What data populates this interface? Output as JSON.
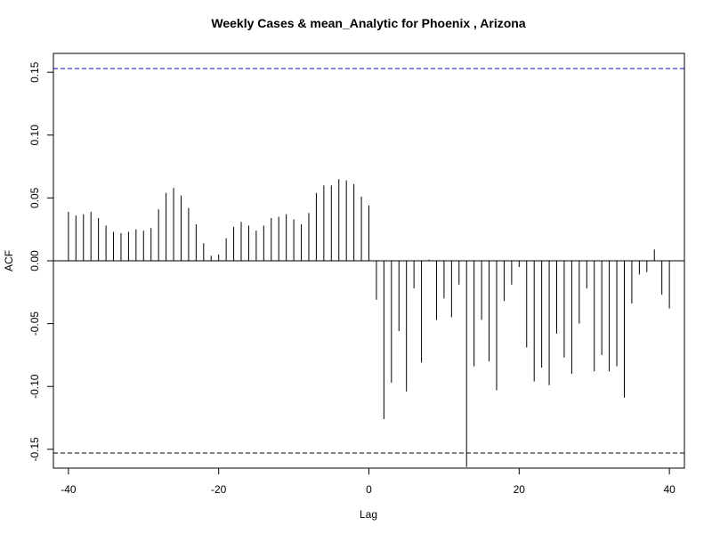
{
  "chart_data": {
    "type": "bar",
    "title": "Weekly Cases & mean_Analytic for Phoenix , Arizona",
    "xlabel": "Lag",
    "ylabel": "ACF",
    "xlim": [
      -42,
      42
    ],
    "ylim": [
      -0.165,
      0.165
    ],
    "x_ticks": [
      -40,
      -20,
      0,
      20,
      40
    ],
    "x_tick_labels": [
      "-40",
      "-20",
      "0",
      "20",
      "40"
    ],
    "y_ticks": [
      -0.15,
      -0.1,
      -0.05,
      0.0,
      0.05,
      0.1,
      0.15
    ],
    "y_tick_labels": [
      "-0.15",
      "-0.10",
      "-0.05",
      "0.00",
      "0.05",
      "0.10",
      "0.15"
    ],
    "confidence_bounds": [
      0.153,
      -0.153
    ],
    "grid": false,
    "colors": {
      "bars": "#000000",
      "upper_bound": "#0000cc",
      "lower_bound": "#000000",
      "zero_line": "#000000"
    },
    "lags": [
      -40,
      -39,
      -38,
      -37,
      -36,
      -35,
      -34,
      -33,
      -32,
      -31,
      -30,
      -29,
      -28,
      -27,
      -26,
      -25,
      -24,
      -23,
      -22,
      -21,
      -20,
      -19,
      -18,
      -17,
      -16,
      -15,
      -14,
      -13,
      -12,
      -11,
      -10,
      -9,
      -8,
      -7,
      -6,
      -5,
      -4,
      -3,
      -2,
      -1,
      0,
      1,
      2,
      3,
      4,
      5,
      6,
      7,
      8,
      9,
      10,
      11,
      12,
      13,
      14,
      15,
      16,
      17,
      18,
      19,
      20,
      21,
      22,
      23,
      24,
      25,
      26,
      27,
      28,
      29,
      30,
      31,
      32,
      33,
      34,
      35,
      36,
      37,
      38,
      39,
      40
    ],
    "values": [
      0.039,
      0.036,
      0.037,
      0.039,
      0.034,
      0.028,
      0.023,
      0.022,
      0.023,
      0.025,
      0.024,
      0.026,
      0.041,
      0.054,
      0.058,
      0.052,
      0.042,
      0.029,
      0.014,
      0.004,
      0.005,
      0.018,
      0.027,
      0.031,
      0.028,
      0.024,
      0.028,
      0.034,
      0.035,
      0.037,
      0.033,
      0.029,
      0.038,
      0.054,
      0.06,
      0.06,
      0.065,
      0.064,
      0.061,
      0.051,
      0.044,
      -0.031,
      -0.126,
      -0.097,
      -0.056,
      -0.104,
      -0.022,
      -0.081,
      0.001,
      -0.047,
      -0.03,
      -0.045,
      -0.019,
      -0.164,
      -0.084,
      -0.047,
      -0.08,
      -0.103,
      -0.032,
      -0.019,
      -0.005,
      -0.069,
      -0.096,
      -0.085,
      -0.099,
      -0.058,
      -0.077,
      -0.09,
      -0.05,
      -0.022,
      -0.088,
      -0.075,
      -0.088,
      -0.084,
      -0.109,
      -0.034,
      -0.011,
      -0.009,
      0.009,
      -0.027,
      -0.038
    ]
  }
}
